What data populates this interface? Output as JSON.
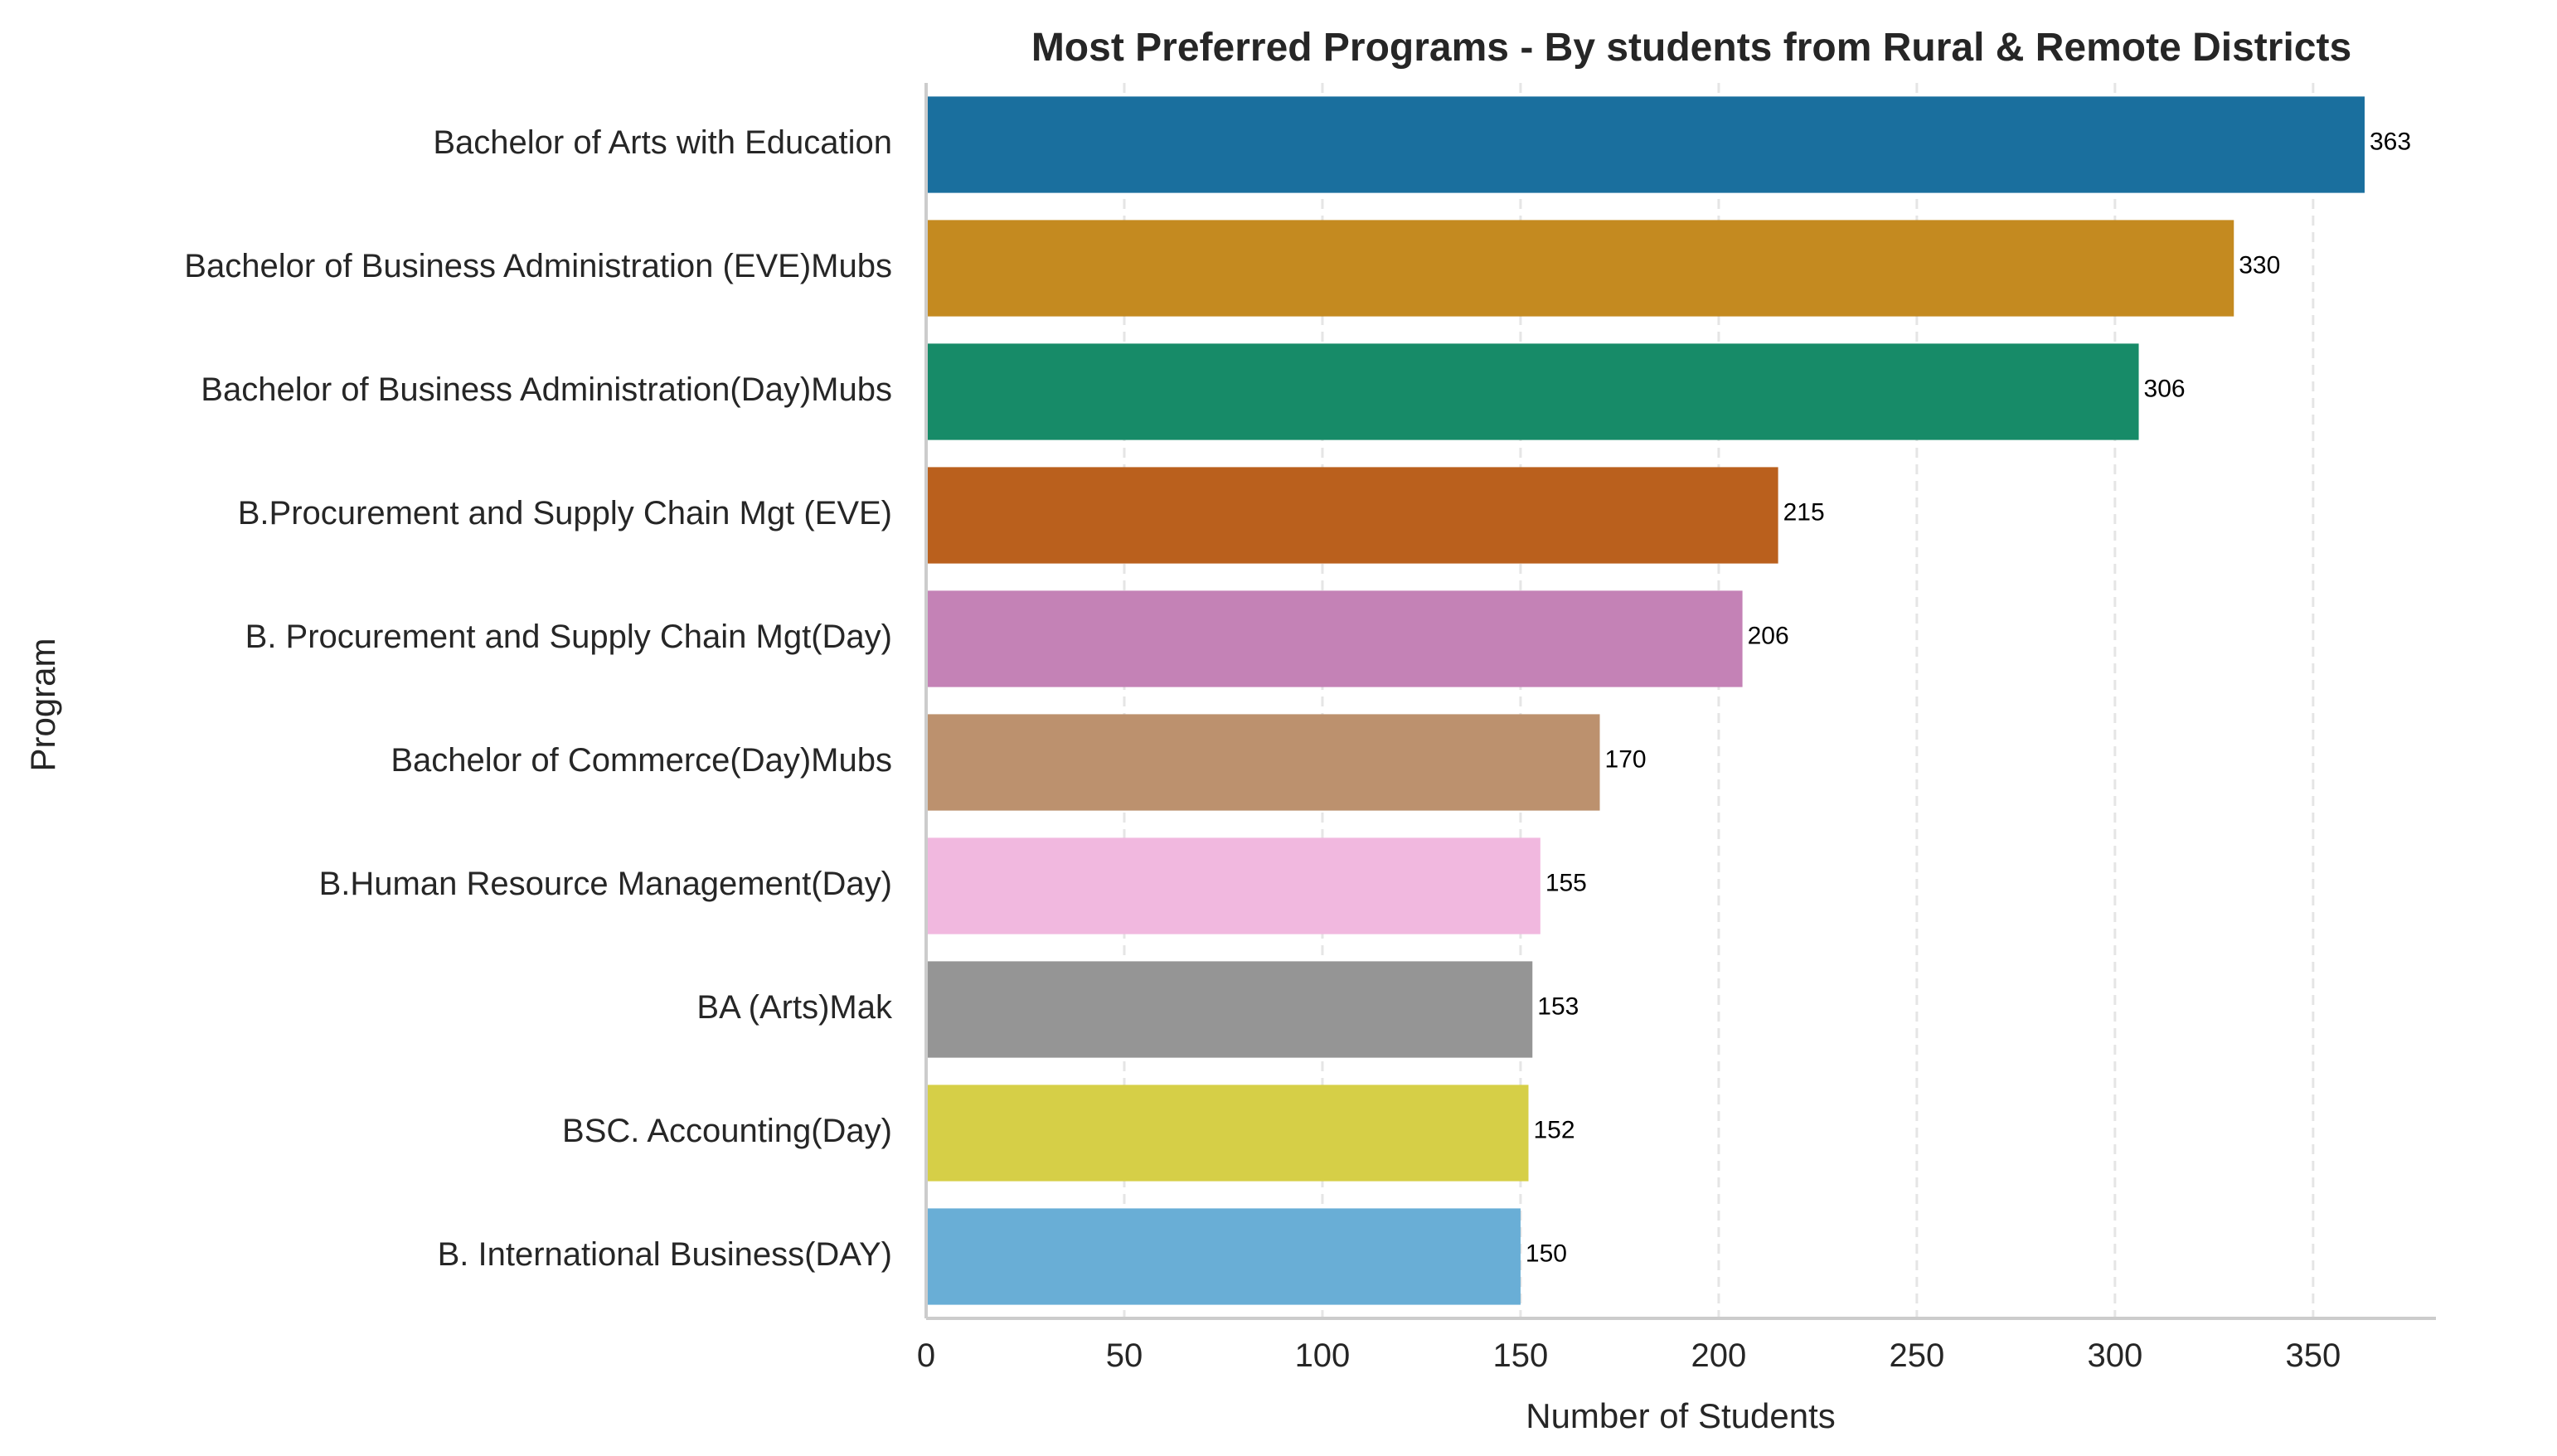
{
  "chart_data": {
    "type": "bar",
    "orientation": "horizontal",
    "title": "Most Preferred Programs - By students from Rural & Remote Districts",
    "xlabel": "Number of Students",
    "ylabel": "Program",
    "categories": [
      "Bachelor of Arts with Education",
      "Bachelor of Business Administration (EVE)Mubs",
      "Bachelor of Business Administration(Day)Mubs",
      "B.Procurement and Supply Chain Mgt (EVE)",
      "B. Procurement and Supply Chain Mgt(Day)",
      "Bachelor of Commerce(Day)Mubs",
      "B.Human Resource Management(Day)",
      "BA (Arts)Mak",
      "BSC. Accounting(Day)",
      "B. International Business(DAY)"
    ],
    "values": [
      363,
      330,
      306,
      215,
      206,
      170,
      155,
      153,
      152,
      150
    ],
    "data_labels": [
      "363",
      "330",
      "306",
      "215",
      "206",
      "170",
      "155",
      "153",
      "152",
      "150"
    ],
    "colors": [
      "#1a6f9e",
      "#c48a20",
      "#178b68",
      "#ba601d",
      "#c482b6",
      "#bc916e",
      "#f1b8df",
      "#959595",
      "#d6cf47",
      "#69aed6"
    ],
    "xticks": [
      0,
      50,
      100,
      150,
      200,
      250,
      300,
      350
    ],
    "xtick_labels": [
      "0",
      "50",
      "100",
      "150",
      "200",
      "250",
      "300",
      "350"
    ],
    "xlim": [
      0,
      381
    ],
    "grid": "vertical dashed",
    "legend": "none"
  }
}
